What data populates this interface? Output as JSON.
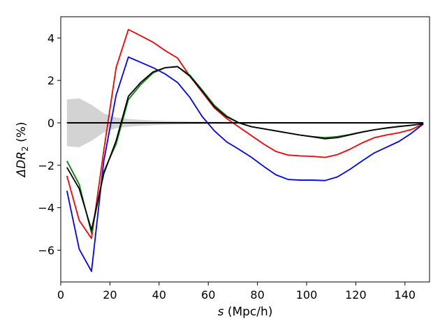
{
  "chart_data": {
    "type": "line",
    "xlabel_italic": "s",
    "xlabel_rest": " (Mpc/h)",
    "ylabel_prefix": "ΔDR",
    "ylabel_sub": "2",
    "ylabel_suffix": " (%)",
    "xlim": [
      0,
      150
    ],
    "ylim": [
      -7.5,
      5
    ],
    "xticks": [
      0,
      20,
      40,
      60,
      80,
      100,
      120,
      140
    ],
    "yticks": [
      -6,
      -4,
      -2,
      0,
      2,
      4
    ],
    "ytick_labels": [
      "−6",
      "−4",
      "−2",
      "0",
      "2",
      "4"
    ],
    "x": [
      2.5,
      7.5,
      12.5,
      17.5,
      22.5,
      27.5,
      32.5,
      37.5,
      42.5,
      47.5,
      52.5,
      57.5,
      62.5,
      67.5,
      72.5,
      77.5,
      82.5,
      87.5,
      92.5,
      97.5,
      102.5,
      107.5,
      112.5,
      117.5,
      122.5,
      127.5,
      132.5,
      137.5,
      142.5,
      147.5
    ],
    "band": {
      "color": "#d3d3d3",
      "upper": [
        1.1,
        1.15,
        0.85,
        0.45,
        0.25,
        0.18,
        0.14,
        0.11,
        0.09,
        0.08,
        0.07,
        0.06,
        0.055,
        0.05,
        0.045,
        0.04,
        0.038,
        0.035,
        0.033,
        0.03,
        0.028,
        0.026,
        0.024,
        0.022,
        0.02,
        0.018,
        0.016,
        0.014,
        0.012,
        0.01
      ],
      "lower": [
        -1.1,
        -1.15,
        -0.85,
        -0.45,
        -0.25,
        -0.18,
        -0.14,
        -0.11,
        -0.09,
        -0.08,
        -0.07,
        -0.06,
        -0.055,
        -0.05,
        -0.045,
        -0.04,
        -0.038,
        -0.035,
        -0.033,
        -0.03,
        -0.028,
        -0.026,
        -0.024,
        -0.022,
        -0.02,
        -0.018,
        -0.016,
        -0.014,
        -0.012,
        -0.01
      ]
    },
    "series": [
      {
        "color": "#ff0000",
        "values": [
          -2.5,
          -4.6,
          -5.45,
          -1.3,
          2.6,
          4.4,
          4.1,
          3.8,
          3.4,
          3.05,
          2.2,
          1.45,
          0.7,
          0.2,
          -0.2,
          -0.6,
          -1.0,
          -1.35,
          -1.52,
          -1.56,
          -1.58,
          -1.63,
          -1.5,
          -1.25,
          -0.95,
          -0.7,
          -0.57,
          -0.47,
          -0.32,
          -0.05
        ]
      },
      {
        "color": "#0000ff",
        "values": [
          -3.2,
          -5.95,
          -7.0,
          -1.8,
          1.3,
          3.1,
          2.85,
          2.6,
          2.3,
          1.9,
          1.2,
          0.3,
          -0.38,
          -0.9,
          -1.25,
          -1.62,
          -2.05,
          -2.45,
          -2.67,
          -2.7,
          -2.7,
          -2.72,
          -2.55,
          -2.2,
          -1.8,
          -1.42,
          -1.15,
          -0.88,
          -0.5,
          -0.05
        ]
      },
      {
        "color": "#008000",
        "values": [
          -1.8,
          -2.9,
          -5.2,
          -2.3,
          -1.0,
          1.1,
          1.8,
          2.35,
          2.6,
          2.65,
          2.25,
          1.55,
          0.82,
          0.32,
          0.0,
          -0.18,
          -0.28,
          -0.38,
          -0.48,
          -0.58,
          -0.65,
          -0.7,
          -0.65,
          -0.55,
          -0.43,
          -0.33,
          -0.25,
          -0.18,
          -0.12,
          -0.05
        ]
      },
      {
        "color": "#000000",
        "values": [
          -2.1,
          -3.1,
          -5.05,
          -2.4,
          -0.85,
          1.25,
          1.9,
          2.4,
          2.6,
          2.65,
          2.2,
          1.5,
          0.75,
          0.28,
          0.0,
          -0.18,
          -0.28,
          -0.38,
          -0.48,
          -0.58,
          -0.66,
          -0.75,
          -0.7,
          -0.57,
          -0.44,
          -0.33,
          -0.24,
          -0.17,
          -0.11,
          -0.05
        ]
      }
    ],
    "zero_line": {
      "color": "#000000",
      "x": [
        2.5,
        147.5
      ],
      "y": [
        0,
        0
      ]
    }
  }
}
